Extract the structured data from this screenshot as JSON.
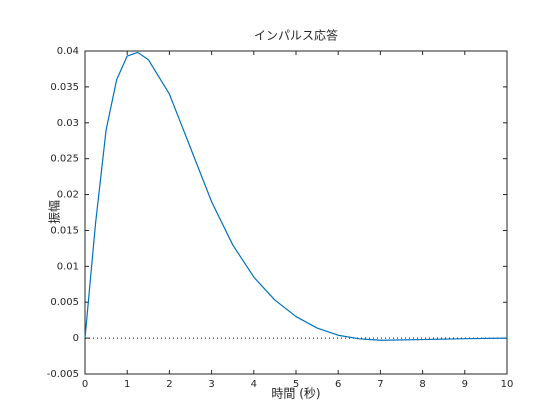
{
  "chart_data": {
    "type": "line",
    "title": "インパルス応答",
    "x_label": "時間 (秒)",
    "y_label": "振幅",
    "x": [
      0,
      0.25,
      0.5,
      0.75,
      1,
      1.25,
      1.5,
      2,
      2.5,
      3,
      3.5,
      4,
      4.5,
      5,
      5.5,
      6,
      6.5,
      7,
      8,
      9,
      10
    ],
    "series": [
      {
        "name": "インパルス応答",
        "color": "#0072bd",
        "values": [
          0,
          0.016,
          0.029,
          0.036,
          0.0393,
          0.0398,
          0.0388,
          0.034,
          0.0265,
          0.019,
          0.013,
          0.0085,
          0.0053,
          0.003,
          0.0014,
          0.0004,
          -0.0001,
          -0.0003,
          -0.0002,
          -8e-05,
          0
        ]
      }
    ],
    "xlim": [
      0,
      10
    ],
    "xticks": [
      0,
      1,
      2,
      3,
      4,
      5,
      6,
      7,
      8,
      9,
      10
    ],
    "ylim": [
      -0.005,
      0.04
    ],
    "yticks": [
      -0.005,
      0,
      0.005,
      0.01,
      0.015,
      0.02,
      0.025,
      0.03,
      0.035,
      0.04
    ],
    "grid": false
  }
}
